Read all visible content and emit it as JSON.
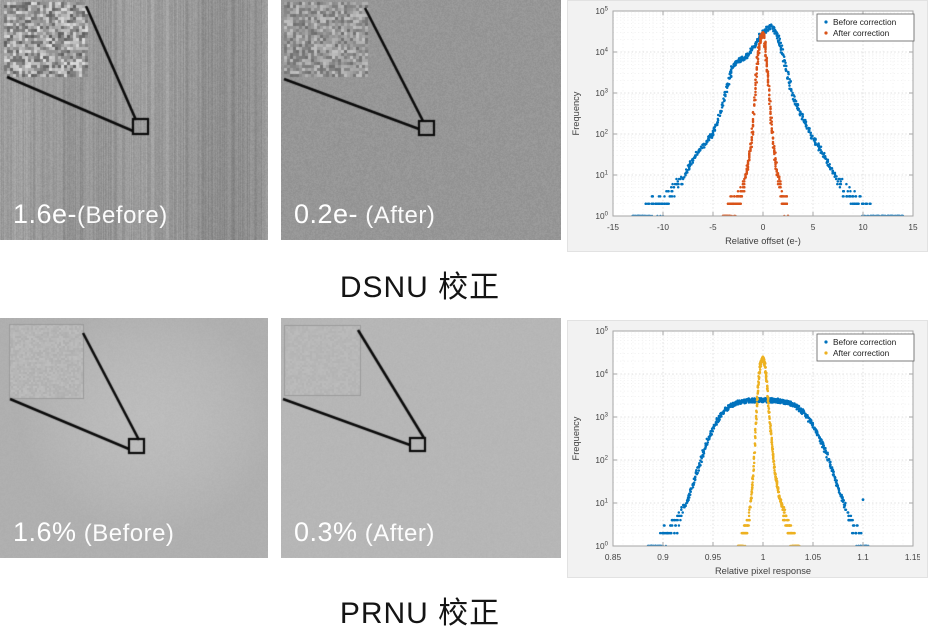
{
  "captions": {
    "dsnu": "DSNU 校正",
    "prnu": "PRNU 校正"
  },
  "panels": [
    {
      "id": "dsnu-before",
      "label_value": "1.6e-",
      "label_qualifier": "(Before)"
    },
    {
      "id": "dsnu-after",
      "label_value": "0.2e-",
      "label_qualifier": " (After)"
    },
    {
      "id": "prnu-before",
      "label_value": "1.6%",
      "label_qualifier": " (Before)"
    },
    {
      "id": "prnu-after",
      "label_value": "0.3%",
      "label_qualifier": " (After)"
    }
  ],
  "chart_data": [
    {
      "type": "scatter",
      "title": "",
      "xlabel": "Relative offset (e-)",
      "ylabel": "Frequency",
      "xlim": [
        -15,
        15
      ],
      "xticks": [
        -15,
        -10,
        -5,
        0,
        5,
        10,
        15
      ],
      "xtick_labels": [
        "-15",
        "-10",
        "-5",
        "0",
        "5",
        "10",
        "15"
      ],
      "minor_x": 1,
      "ylog": true,
      "ylim": [
        1,
        100000
      ],
      "yticks_exp": [
        0,
        1,
        2,
        3,
        4,
        5
      ],
      "grid": "major and minor dotted",
      "legend_position": "top-right",
      "series": [
        {
          "name": "Before correction",
          "color": "#0072BD",
          "samples": 250,
          "profile": [
            [
              -13,
              1
            ],
            [
              -12,
              1
            ],
            [
              -11,
              2
            ],
            [
              -10,
              2
            ],
            [
              -9,
              5
            ],
            [
              -8.5,
              6
            ],
            [
              -8,
              8
            ],
            [
              -7.5,
              14
            ],
            [
              -7,
              24
            ],
            [
              -6.5,
              36
            ],
            [
              -6,
              52
            ],
            [
              -5.5,
              75
            ],
            [
              -5,
              105
            ],
            [
              -4.6,
              170
            ],
            [
              -4.2,
              350
            ],
            [
              -3.8,
              900
            ],
            [
              -3.4,
              2200
            ],
            [
              -3,
              4600
            ],
            [
              -2.6,
              5900
            ],
            [
              -2.2,
              6600
            ],
            [
              -1.8,
              7300
            ],
            [
              -1.4,
              8800
            ],
            [
              -1,
              12500
            ],
            [
              -0.6,
              18000
            ],
            [
              -0.2,
              26000
            ],
            [
              0.2,
              33500
            ],
            [
              0.5,
              38500
            ],
            [
              0.8,
              42000
            ],
            [
              1,
              40000
            ],
            [
              1.3,
              30000
            ],
            [
              1.6,
              19000
            ],
            [
              1.9,
              10500
            ],
            [
              2.2,
              5200
            ],
            [
              2.5,
              2600
            ],
            [
              2.8,
              1300
            ],
            [
              3.1,
              750
            ],
            [
              3.5,
              420
            ],
            [
              4,
              240
            ],
            [
              4.5,
              140
            ],
            [
              5,
              80
            ],
            [
              5.5,
              52
            ],
            [
              6,
              32
            ],
            [
              6.5,
              20
            ],
            [
              7,
              12
            ],
            [
              7.5,
              7
            ],
            [
              8,
              5
            ],
            [
              8.5,
              4
            ],
            [
              9,
              3
            ],
            [
              9.5,
              2
            ],
            [
              10,
              2
            ],
            [
              11,
              1
            ],
            [
              12,
              1
            ],
            [
              13,
              1
            ],
            [
              14,
              1
            ]
          ]
        },
        {
          "name": "After correction",
          "color": "#D95319",
          "samples": 150,
          "xq": 0.125,
          "profile": [
            [
              -4,
              1
            ],
            [
              -3.6,
              1
            ],
            [
              -3.2,
              2
            ],
            [
              -2.8,
              2
            ],
            [
              -2.4,
              3
            ],
            [
              -2,
              5
            ],
            [
              -1.8,
              8
            ],
            [
              -1.6,
              13
            ],
            [
              -1.4,
              26
            ],
            [
              -1.2,
              60
            ],
            [
              -1,
              160
            ],
            [
              -0.9,
              420
            ],
            [
              -0.8,
              950
            ],
            [
              -0.7,
              2100
            ],
            [
              -0.6,
              4600
            ],
            [
              -0.5,
              8200
            ],
            [
              -0.4,
              12500
            ],
            [
              -0.3,
              17500
            ],
            [
              -0.2,
              22500
            ],
            [
              -0.1,
              26500
            ],
            [
              0,
              29000
            ],
            [
              0.1,
              23500
            ],
            [
              0.2,
              15000
            ],
            [
              0.3,
              8200
            ],
            [
              0.4,
              4200
            ],
            [
              0.5,
              2100
            ],
            [
              0.6,
              1050
            ],
            [
              0.7,
              520
            ],
            [
              0.8,
              260
            ],
            [
              0.9,
              130
            ],
            [
              1,
              72
            ],
            [
              1.1,
              42
            ],
            [
              1.2,
              26
            ],
            [
              1.35,
              14
            ],
            [
              1.5,
              8
            ],
            [
              1.7,
              5
            ],
            [
              1.9,
              3
            ],
            [
              2.1,
              2
            ],
            [
              2.35,
              2
            ],
            [
              2.5,
              1
            ]
          ]
        }
      ]
    },
    {
      "type": "scatter",
      "title": "",
      "xlabel": "Relative pixel response",
      "ylabel": "Frequency",
      "xlim": [
        0.85,
        1.15
      ],
      "xticks": [
        0.85,
        0.9,
        0.95,
        1,
        1.05,
        1.1,
        1.15
      ],
      "xtick_labels": [
        "0.85",
        "0.9",
        "0.95",
        "1",
        "1.05",
        "1.1",
        "1.15"
      ],
      "minor_x": 0.01,
      "ylog": true,
      "ylim": [
        1,
        100000
      ],
      "yticks_exp": [
        0,
        1,
        2,
        3,
        4,
        5
      ],
      "grid": "major and minor dotted",
      "legend_position": "top-right",
      "series": [
        {
          "name": "Before correction",
          "color": "#0072BD",
          "samples": 250,
          "profile": [
            [
              0.885,
              1
            ],
            [
              0.89,
              1
            ],
            [
              0.895,
              1
            ],
            [
              0.9,
              2
            ],
            [
              0.905,
              2
            ],
            [
              0.91,
              3
            ],
            [
              0.915,
              4
            ],
            [
              0.92,
              7
            ],
            [
              0.925,
              12
            ],
            [
              0.93,
              26
            ],
            [
              0.935,
              62
            ],
            [
              0.94,
              140
            ],
            [
              0.945,
              290
            ],
            [
              0.95,
              520
            ],
            [
              0.955,
              880
            ],
            [
              0.96,
              1280
            ],
            [
              0.965,
              1680
            ],
            [
              0.97,
              1960
            ],
            [
              0.975,
              2160
            ],
            [
              0.98,
              2300
            ],
            [
              0.985,
              2390
            ],
            [
              0.99,
              2430
            ],
            [
              1,
              2460
            ],
            [
              1.01,
              2430
            ],
            [
              1.015,
              2390
            ],
            [
              1.02,
              2300
            ],
            [
              1.025,
              2160
            ],
            [
              1.03,
              1950
            ],
            [
              1.035,
              1640
            ],
            [
              1.04,
              1290
            ],
            [
              1.045,
              940
            ],
            [
              1.05,
              640
            ],
            [
              1.055,
              395
            ],
            [
              1.06,
              225
            ],
            [
              1.065,
              115
            ],
            [
              1.07,
              54
            ],
            [
              1.075,
              24
            ],
            [
              1.08,
              11
            ],
            [
              1.085,
              5
            ],
            [
              1.09,
              3
            ],
            [
              1.095,
              2
            ],
            [
              1.1,
              1
            ],
            [
              1.105,
              1
            ]
          ],
          "outliers": [
            [
              1.1,
              12
            ]
          ]
        },
        {
          "name": "After correction",
          "color": "#EDB120",
          "samples": 170,
          "profile": [
            [
              0.975,
              1
            ],
            [
              0.978,
              1
            ],
            [
              0.981,
              2
            ],
            [
              0.984,
              3
            ],
            [
              0.986,
              5
            ],
            [
              0.988,
              12
            ],
            [
              0.99,
              42
            ],
            [
              0.991,
              95
            ],
            [
              0.992,
              260
            ],
            [
              0.993,
              720
            ],
            [
              0.994,
              1900
            ],
            [
              0.995,
              4600
            ],
            [
              0.996,
              9200
            ],
            [
              0.997,
              14500
            ],
            [
              0.998,
              18500
            ],
            [
              0.999,
              21500
            ],
            [
              1,
              23000
            ],
            [
              1.001,
              20500
            ],
            [
              1.002,
              15500
            ],
            [
              1.003,
              9800
            ],
            [
              1.004,
              5400
            ],
            [
              1.005,
              2750
            ],
            [
              1.006,
              1380
            ],
            [
              1.007,
              700
            ],
            [
              1.008,
              380
            ],
            [
              1.009,
              215
            ],
            [
              1.01,
              130
            ],
            [
              1.011,
              82
            ],
            [
              1.012,
              54
            ],
            [
              1.013,
              38
            ],
            [
              1.014,
              28
            ],
            [
              1.015,
              21
            ],
            [
              1.016,
              15
            ],
            [
              1.018,
              10
            ],
            [
              1.02,
              7
            ],
            [
              1.022,
              5
            ],
            [
              1.025,
              3
            ],
            [
              1.028,
              2
            ],
            [
              1.032,
              1
            ],
            [
              1.036,
              1
            ]
          ]
        }
      ]
    }
  ]
}
